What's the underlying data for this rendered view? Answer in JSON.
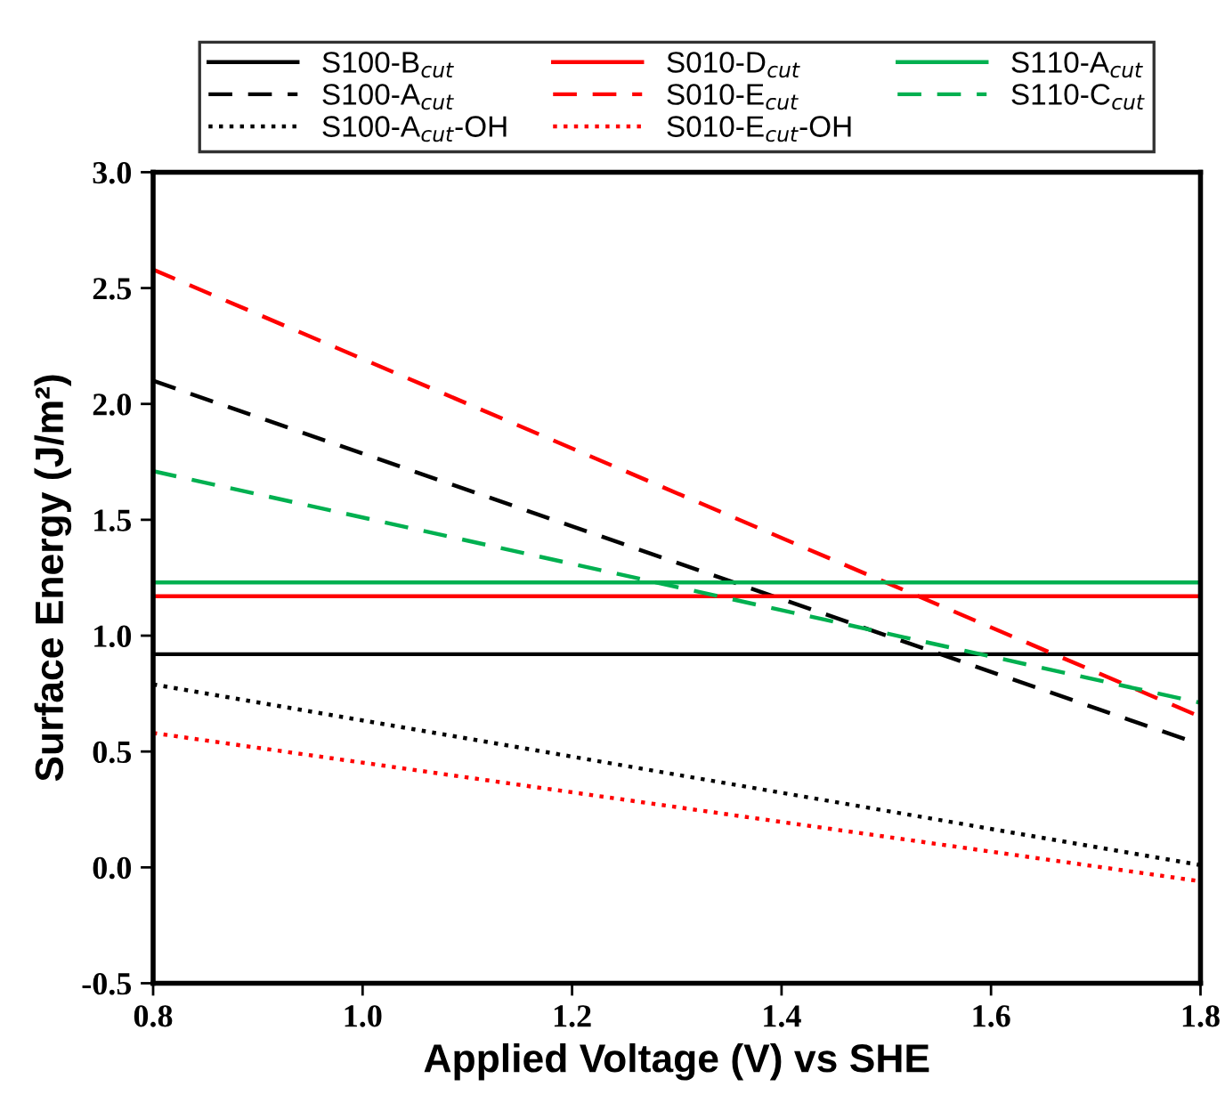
{
  "chart_data": {
    "type": "line",
    "xlabel": "Applied Voltage (V) vs SHE",
    "ylabel": "Surface Energy (J/m²)",
    "x": [
      0.8,
      1.8
    ],
    "xlim": [
      0.8,
      1.8
    ],
    "xticks": [
      {
        "value": 0.8,
        "label": "0.8"
      },
      {
        "value": 1.0,
        "label": "1.0"
      },
      {
        "value": 1.2,
        "label": "1.2"
      },
      {
        "value": 1.4,
        "label": "1.4"
      },
      {
        "value": 1.6,
        "label": "1.6"
      },
      {
        "value": 1.8,
        "label": "1.8"
      }
    ],
    "ylim": [
      -0.5,
      3.0
    ],
    "yticks": [
      {
        "value": -0.5,
        "label": "-0.5"
      },
      {
        "value": 0.0,
        "label": "0.0"
      },
      {
        "value": 0.5,
        "label": "0.5"
      },
      {
        "value": 1.0,
        "label": "1.0"
      },
      {
        "value": 1.5,
        "label": "1.5"
      },
      {
        "value": 2.0,
        "label": "2.0"
      },
      {
        "value": 2.5,
        "label": "2.5"
      },
      {
        "value": 3.0,
        "label": "3.0"
      }
    ],
    "grid": false,
    "legend": "top",
    "marker": "none",
    "series": [
      {
        "name": "S100-B$_{cut}$",
        "color": "#000000",
        "line_style": "solid",
        "values": [
          0.92,
          0.92
        ]
      },
      {
        "name": "S100-A$_{cut}$",
        "color": "#000000",
        "line_style": "dashed",
        "values": [
          2.1,
          0.53
        ]
      },
      {
        "name": "S100-A$_{cut}$-OH",
        "color": "#000000",
        "line_style": "dotted",
        "values": [
          0.79,
          0.01
        ]
      },
      {
        "name": "S010-D$_{cut}$",
        "color": "#ff0000",
        "line_style": "solid",
        "values": [
          1.17,
          1.17
        ]
      },
      {
        "name": "S010-E$_{cut}$",
        "color": "#ff0000",
        "line_style": "dashed",
        "values": [
          2.58,
          0.65
        ]
      },
      {
        "name": "S010-E$_{cut}$-OH",
        "color": "#ff0000",
        "line_style": "dotted",
        "values": [
          0.58,
          -0.06
        ]
      },
      {
        "name": "S110-A$_{cut}$",
        "color": "#00b050",
        "line_style": "solid",
        "values": [
          1.23,
          1.23
        ]
      },
      {
        "name": "S110-C$_{cut}$",
        "color": "#00b050",
        "line_style": "dashed",
        "values": [
          1.71,
          0.71
        ]
      }
    ]
  }
}
